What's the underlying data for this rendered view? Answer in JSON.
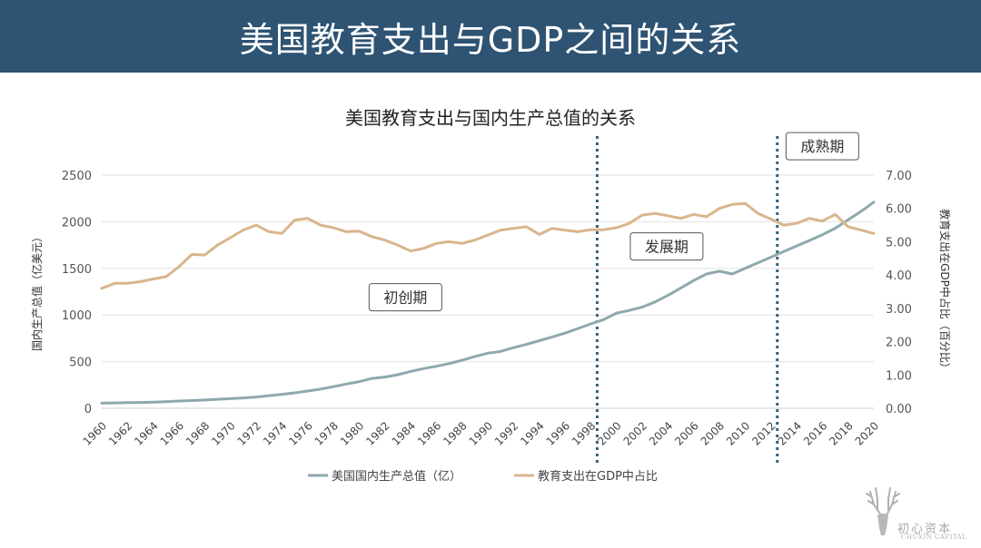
{
  "page": {
    "banner_title": "美国教育支出与GDP之间的关系"
  },
  "chart_data": {
    "type": "line",
    "title": "美国教育支出与国内生产总值的关系",
    "ylabel_left": "国内生产总值（亿美元）",
    "ylabel_right": "教育支出在GDP中占比（百分比）",
    "ylim_left": [
      0,
      2500
    ],
    "ylim_right": [
      0,
      7
    ],
    "left_ticks": [
      "0",
      "500",
      "1000",
      "1500",
      "2000",
      "2500"
    ],
    "right_ticks": [
      "0.00",
      "1.00",
      "2.00",
      "3.00",
      "4.00",
      "5.00",
      "6.00",
      "7.00"
    ],
    "x": [
      1960,
      1961,
      1962,
      1963,
      1964,
      1965,
      1966,
      1967,
      1968,
      1969,
      1970,
      1971,
      1972,
      1973,
      1974,
      1975,
      1976,
      1977,
      1978,
      1979,
      1980,
      1981,
      1982,
      1983,
      1984,
      1985,
      1986,
      1987,
      1988,
      1989,
      1990,
      1991,
      1992,
      1993,
      1994,
      1995,
      1996,
      1997,
      1998,
      1999,
      2000,
      2001,
      2002,
      2003,
      2004,
      2005,
      2006,
      2007,
      2008,
      2009,
      2010,
      2011,
      2012,
      2013,
      2014,
      2015,
      2016,
      2017,
      2018,
      2019,
      2020
    ],
    "x_tick_labels": [
      "1960",
      "1962",
      "1964",
      "1966",
      "1968",
      "1970",
      "1972",
      "1974",
      "1976",
      "1978",
      "1980",
      "1982",
      "1984",
      "1986",
      "1988",
      "1990",
      "1992",
      "1994",
      "1996",
      "1998",
      "2000",
      "2002",
      "2004",
      "2006",
      "2008",
      "2010",
      "2012",
      "2014",
      "2016",
      "2018",
      "2020"
    ],
    "series": [
      {
        "name": "美国国内生产总值（亿）",
        "axis": "left",
        "color": "#8fa8ae",
        "values": [
          55,
          57,
          60,
          62,
          66,
          71,
          78,
          83,
          89,
          96,
          103,
          111,
          121,
          135,
          150,
          165,
          185,
          205,
          232,
          260,
          285,
          320,
          335,
          360,
          395,
          425,
          450,
          480,
          515,
          555,
          590,
          610,
          650,
          685,
          725,
          765,
          805,
          855,
          905,
          950,
          1020,
          1050,
          1085,
          1140,
          1210,
          1290,
          1370,
          1440,
          1470,
          1440,
          1500,
          1560,
          1620,
          1680,
          1740,
          1800,
          1860,
          1930,
          2020,
          2110,
          2210
        ]
      },
      {
        "name": "教育支出在GDP中占比",
        "axis": "right",
        "color": "#d9b58c",
        "values": [
          3.6,
          3.75,
          3.75,
          3.8,
          3.88,
          3.95,
          4.25,
          4.62,
          4.6,
          4.9,
          5.12,
          5.35,
          5.5,
          5.3,
          5.25,
          5.65,
          5.7,
          5.5,
          5.42,
          5.3,
          5.32,
          5.15,
          5.05,
          4.9,
          4.72,
          4.8,
          4.95,
          5.0,
          4.95,
          5.05,
          5.2,
          5.35,
          5.4,
          5.45,
          5.22,
          5.4,
          5.35,
          5.3,
          5.36,
          5.36,
          5.42,
          5.55,
          5.8,
          5.85,
          5.78,
          5.7,
          5.82,
          5.75,
          6.0,
          6.12,
          6.15,
          5.85,
          5.68,
          5.5,
          5.55,
          5.7,
          5.62,
          5.82,
          5.45,
          5.35,
          5.25
        ]
      }
    ],
    "dividers": [
      1998.5,
      2012.5
    ],
    "phases": [
      {
        "label": "初创期",
        "x": 1983.6,
        "y": 1190
      },
      {
        "label": "发展期",
        "x": 2003.9,
        "y": 1735
      },
      {
        "label": "成熟期",
        "x": 2016.0,
        "y": 2810
      }
    ],
    "legend": [
      "美国国内生产总值（亿）",
      "教育支出在GDP中占比"
    ],
    "legend_position": "bottom"
  },
  "watermark": {
    "text": "初心资本",
    "subtext": "CHUXIN CAPITAL"
  }
}
